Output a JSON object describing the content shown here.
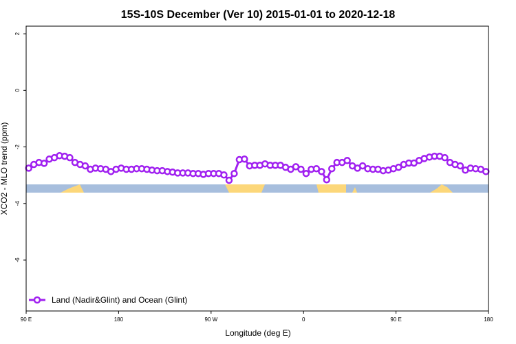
{
  "chart_data": {
    "type": "line",
    "title": "15S-10S December (Ver 10)   2015-01-01 to 2020-12-18",
    "xlabel": "Longitude (deg E)",
    "ylabel": "XCO2 - MLO trend (ppm)",
    "xlim": [
      90,
      540
    ],
    "ylim": [
      -7.8,
      2.27
    ],
    "xticks": [
      {
        "value": 90,
        "label": "90 E"
      },
      {
        "value": 180,
        "label": "180"
      },
      {
        "value": 270,
        "label": "90 W"
      },
      {
        "value": 360,
        "label": "0"
      },
      {
        "value": 450,
        "label": "90 E"
      },
      {
        "value": 540,
        "label": "180"
      }
    ],
    "yticks": [
      2,
      0,
      -2,
      -4,
      -6
    ],
    "legend": "bottom-left",
    "x": [
      92.5,
      97.5,
      102.5,
      107.5,
      112.5,
      117.5,
      122.5,
      127.5,
      132.5,
      137.5,
      142.5,
      147.5,
      152.5,
      157.5,
      162.5,
      167.5,
      172.5,
      177.5,
      182.5,
      187.5,
      192.5,
      197.5,
      202.5,
      207.5,
      212.5,
      217.5,
      222.5,
      227.5,
      232.5,
      237.5,
      242.5,
      247.5,
      252.5,
      257.5,
      262.5,
      267.5,
      272.5,
      277.5,
      282.5,
      287.5,
      292.5,
      297.5,
      302.5,
      307.5,
      312.5,
      317.5,
      322.5,
      327.5,
      332.5,
      337.5,
      342.5,
      347.5,
      352.5,
      357.5,
      362.5,
      367.5,
      372.5,
      377.5,
      382.5,
      387.5,
      392.5,
      397.5,
      402.5,
      407.5,
      412.5,
      417.5,
      422.5,
      427.5,
      432.5,
      437.5,
      442.5,
      447.5,
      452.5,
      457.5,
      462.5,
      467.5,
      472.5,
      477.5,
      482.5,
      487.5,
      492.5,
      497.5,
      502.5,
      507.5,
      512.5,
      517.5,
      522.5,
      527.5,
      532.5,
      537.5
    ],
    "series": [
      {
        "name": "Land (Nadir&Glint) and Ocean (Glint)",
        "color": "#a020f0",
        "values": [
          -2.75,
          -2.62,
          -2.55,
          -2.58,
          -2.43,
          -2.38,
          -2.31,
          -2.33,
          -2.38,
          -2.55,
          -2.62,
          -2.67,
          -2.79,
          -2.75,
          -2.77,
          -2.79,
          -2.87,
          -2.79,
          -2.75,
          -2.79,
          -2.79,
          -2.77,
          -2.77,
          -2.79,
          -2.82,
          -2.84,
          -2.84,
          -2.87,
          -2.89,
          -2.92,
          -2.92,
          -2.92,
          -2.94,
          -2.94,
          -2.97,
          -2.94,
          -2.94,
          -2.94,
          -2.99,
          -3.18,
          -2.94,
          -2.45,
          -2.43,
          -2.67,
          -2.65,
          -2.65,
          -2.6,
          -2.65,
          -2.65,
          -2.65,
          -2.72,
          -2.79,
          -2.7,
          -2.79,
          -2.94,
          -2.79,
          -2.77,
          -2.87,
          -3.16,
          -2.77,
          -2.55,
          -2.55,
          -2.48,
          -2.67,
          -2.75,
          -2.67,
          -2.77,
          -2.79,
          -2.79,
          -2.84,
          -2.82,
          -2.77,
          -2.72,
          -2.62,
          -2.57,
          -2.57,
          -2.48,
          -2.41,
          -2.36,
          -2.33,
          -2.33,
          -2.38,
          -2.55,
          -2.62,
          -2.67,
          -2.82,
          -2.75,
          -2.77,
          -2.79,
          -2.87
        ]
      }
    ]
  }
}
